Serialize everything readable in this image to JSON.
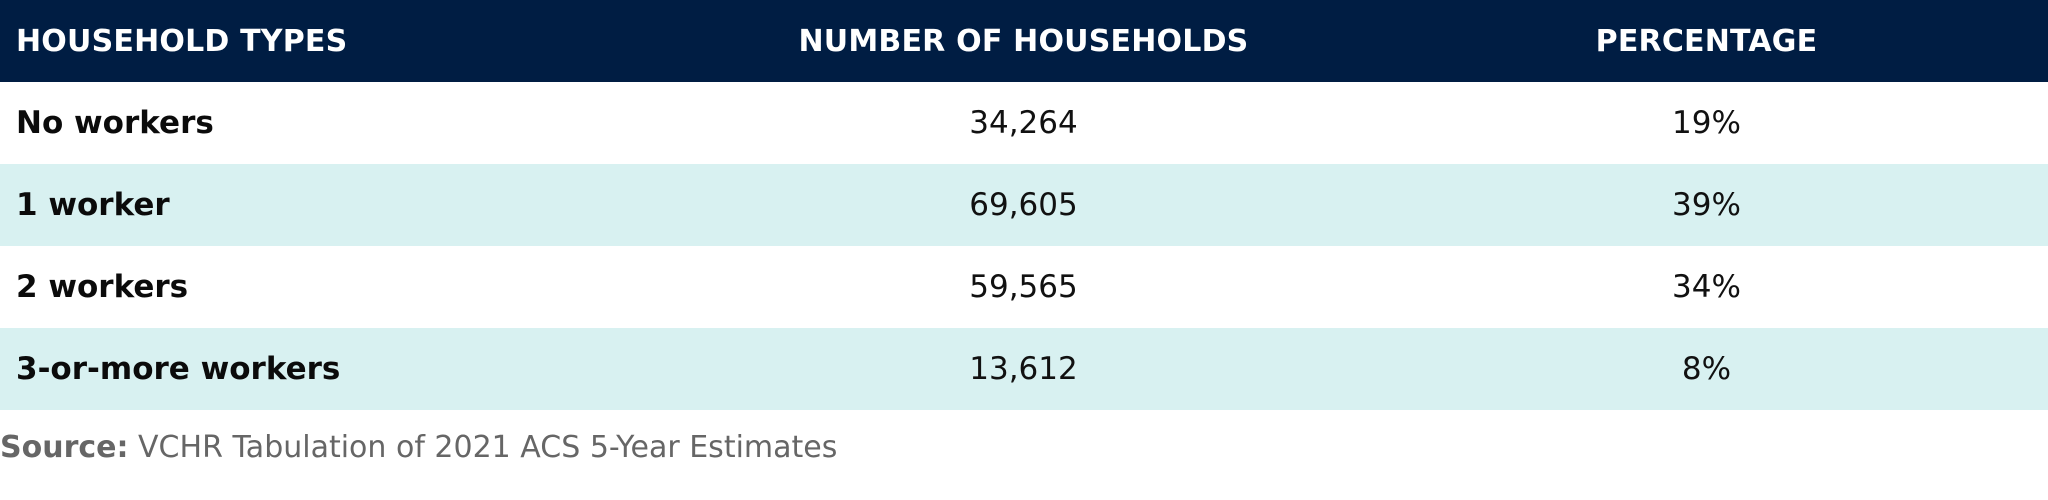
{
  "headers": {
    "type": "HOUSEHOLD TYPES",
    "number": "NUMBER OF HOUSEHOLDS",
    "percentage": "PERCENTAGE"
  },
  "rows": [
    {
      "type": "No workers",
      "number": "34,264",
      "percentage": "19%"
    },
    {
      "type": "1 worker",
      "number": "69,605",
      "percentage": "39%"
    },
    {
      "type": "2 workers",
      "number": "59,565",
      "percentage": "34%"
    },
    {
      "type": "3-or-more workers",
      "number": "13,612",
      "percentage": "8%"
    }
  ],
  "source": {
    "label": "Source:",
    "text": " VCHR Tabulation of 2021 ACS 5-Year Estimates"
  },
  "colors": {
    "header_bg": "#001d43",
    "row_alt_bg": "#d8f1f1",
    "source_text": "#666666"
  }
}
